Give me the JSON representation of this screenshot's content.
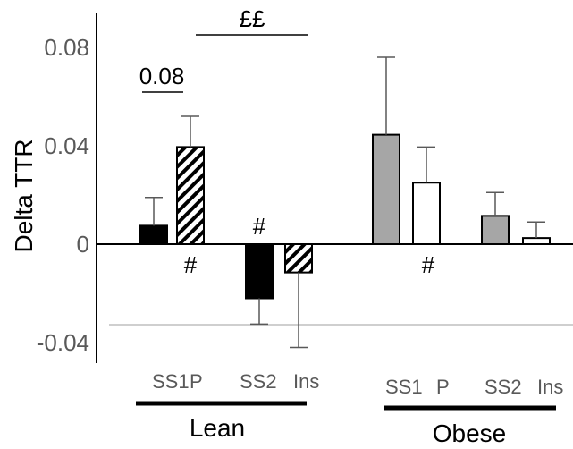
{
  "chart_data": {
    "type": "bar",
    "ylabel": "Delta TTR",
    "ylim": [
      -0.045,
      0.085
    ],
    "yticks": [
      0.08,
      0.04,
      0,
      -0.04
    ],
    "ytick_labels": [
      "0.08",
      "0.04",
      "0",
      "-0.04"
    ],
    "categories": [
      "SS1",
      "P",
      "SS2",
      "Ins",
      "SS1",
      "P",
      "SS2",
      "Ins"
    ],
    "groups": [
      {
        "name": "Lean",
        "category_indices": [
          0,
          1,
          2,
          3
        ]
      },
      {
        "name": "Obese",
        "category_indices": [
          4,
          5,
          6,
          7
        ]
      }
    ],
    "bars": [
      {
        "group": "Lean",
        "label": "SS1",
        "value": 0.0075,
        "error": 0.0115,
        "fill": "black"
      },
      {
        "group": "Lean",
        "label": "P",
        "value": 0.0395,
        "error": 0.0125,
        "fill": "hatched"
      },
      {
        "group": "Lean",
        "label": "SS2",
        "value": -0.022,
        "error": 0.0105,
        "fill": "black"
      },
      {
        "group": "Lean",
        "label": "Ins",
        "value": -0.0115,
        "error": 0.0305,
        "fill": "hatched"
      },
      {
        "group": "Obese",
        "label": "SS1",
        "value": 0.0445,
        "error": 0.0315,
        "fill": "gray"
      },
      {
        "group": "Obese",
        "label": "P",
        "value": 0.025,
        "error": 0.0145,
        "fill": "white"
      },
      {
        "group": "Obese",
        "label": "SS2",
        "value": 0.0115,
        "error": 0.0095,
        "fill": "gray"
      },
      {
        "group": "Obese",
        "label": "Ins",
        "value": 0.0025,
        "error": 0.0065,
        "fill": "white"
      }
    ],
    "annotations": {
      "bracket_p": "0.08",
      "bracket_ff": "££",
      "hash": "#"
    },
    "colors": {
      "black": "#000000",
      "gray": "#a6a6a6",
      "white": "#ffffff",
      "axis": "#000000",
      "reference_line": "#bfbfbf",
      "error_bar": "#595959"
    }
  }
}
